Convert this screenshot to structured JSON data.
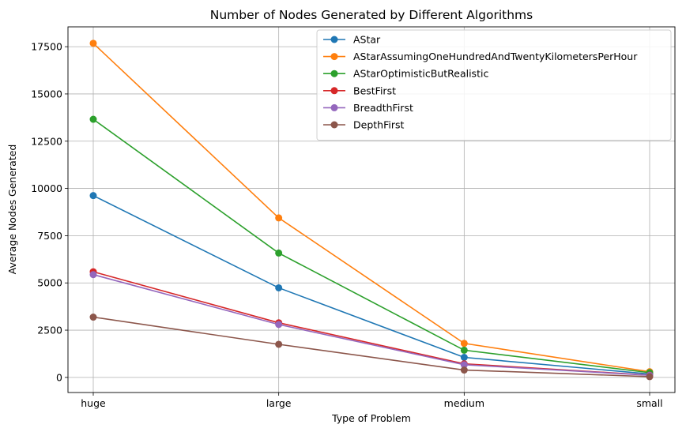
{
  "chart_data": {
    "type": "line",
    "title": "Number of Nodes Generated by Different Algorithms",
    "xlabel": "Type of Problem",
    "ylabel": "Average Nodes Generated",
    "categories": [
      "huge",
      "large",
      "medium",
      "small"
    ],
    "ylim": [
      -800,
      18550
    ],
    "yticks": [
      0,
      2500,
      5000,
      7500,
      10000,
      12500,
      15000,
      17500
    ],
    "grid": true,
    "legend_position": "top-right",
    "series": [
      {
        "name": "AStar",
        "color": "#1f77b4",
        "values": [
          9620,
          4740,
          1060,
          180
        ]
      },
      {
        "name": "AStarAssumingOneHundredAndTwentyKilometersPerHour",
        "color": "#ff7f0e",
        "values": [
          17680,
          8440,
          1800,
          300
        ]
      },
      {
        "name": "AStarOptimisticButRealistic",
        "color": "#2ca02c",
        "values": [
          13660,
          6580,
          1440,
          250
        ]
      },
      {
        "name": "BestFirst",
        "color": "#d62728",
        "values": [
          5590,
          2890,
          720,
          120
        ]
      },
      {
        "name": "BreadthFirst",
        "color": "#9467bd",
        "values": [
          5440,
          2800,
          670,
          110
        ]
      },
      {
        "name": "DepthFirst",
        "color": "#8c564b",
        "values": [
          3190,
          1750,
          390,
          40
        ]
      }
    ]
  }
}
